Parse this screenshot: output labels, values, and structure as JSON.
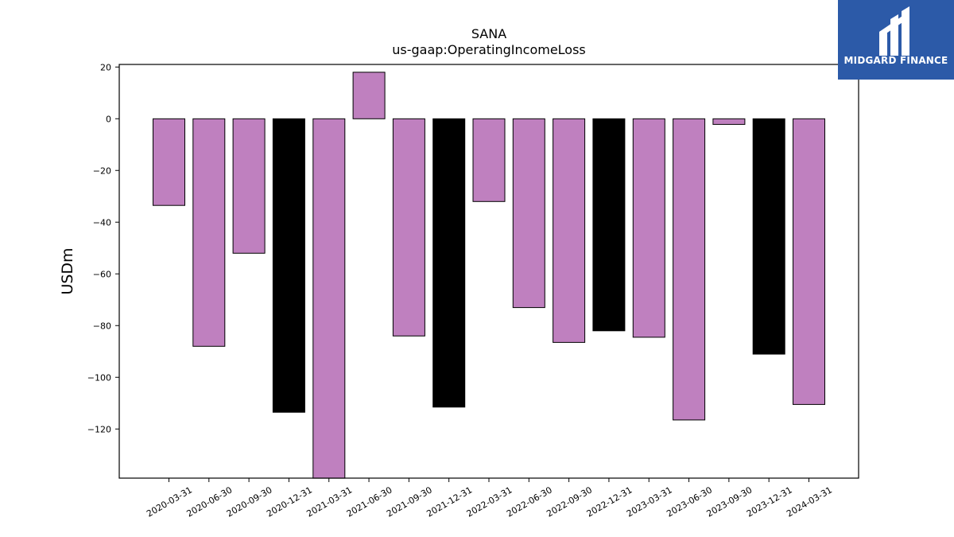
{
  "logo": {
    "text": "MIDGARD FINANCE",
    "background": "#2c5aa8",
    "icon": "midgard-logo-icon"
  },
  "chart_data": {
    "type": "bar",
    "title": "SANA",
    "subtitle": "us-gaap:OperatingIncomeLoss",
    "ylabel": "USDm",
    "xlabel": "",
    "ylim": [
      -139,
      21
    ],
    "yticks": [
      20,
      0,
      -20,
      -40,
      -60,
      -80,
      -100,
      -120
    ],
    "categories": [
      "2020-03-31",
      "2020-06-30",
      "2020-09-30",
      "2020-12-31",
      "2021-03-31",
      "2021-06-30",
      "2021-09-30",
      "2021-12-31",
      "2022-03-31",
      "2022-06-30",
      "2022-09-30",
      "2022-12-31",
      "2023-03-31",
      "2023-06-30",
      "2023-09-30",
      "2023-12-31",
      "2024-03-31"
    ],
    "values": [
      -33.5,
      -88,
      -52,
      -113.5,
      -139,
      18,
      -84,
      -111.5,
      -32,
      -73,
      -86.5,
      -82,
      -84.5,
      -116.5,
      -2.2,
      -91,
      -110.5
    ],
    "bar_colors": [
      "#bf80bf",
      "#bf80bf",
      "#bf80bf",
      "#000000",
      "#bf80bf",
      "#bf80bf",
      "#bf80bf",
      "#000000",
      "#bf80bf",
      "#bf80bf",
      "#bf80bf",
      "#000000",
      "#bf80bf",
      "#bf80bf",
      "#bf80bf",
      "#000000",
      "#bf80bf"
    ],
    "grid": false,
    "legend": "none"
  }
}
